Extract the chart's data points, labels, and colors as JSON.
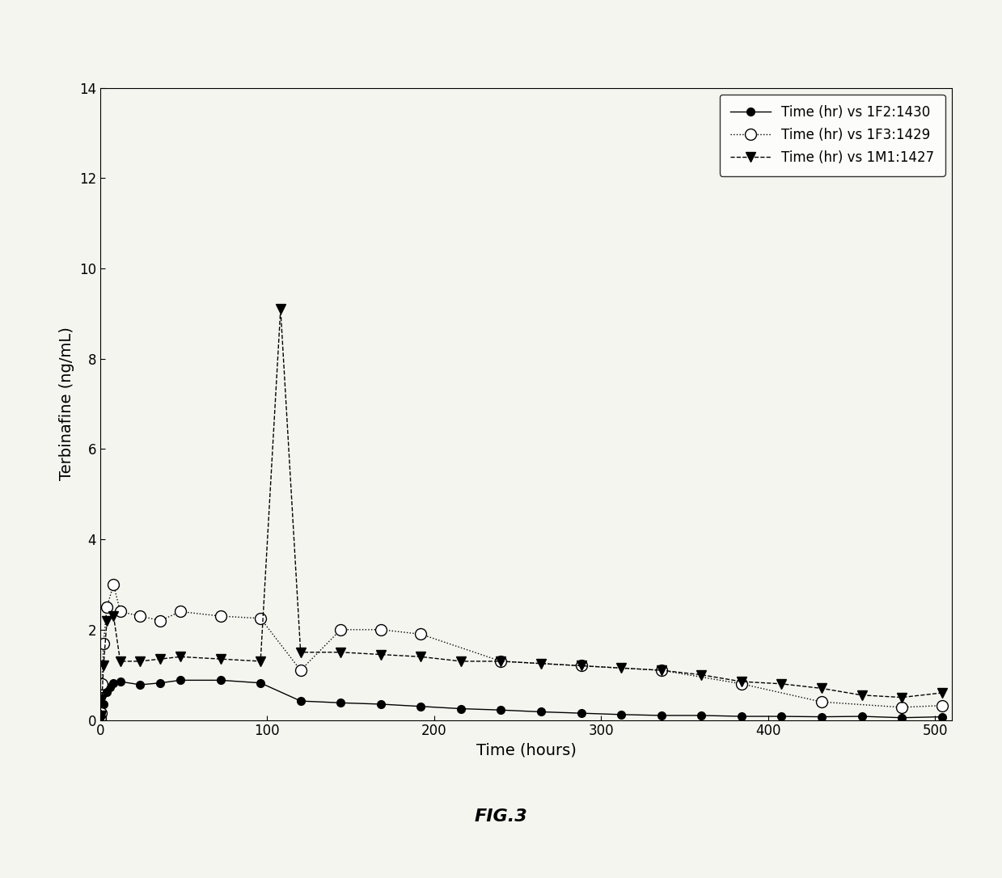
{
  "series": [
    {
      "label": "Time (hr) vs 1F2:1430",
      "x": [
        0,
        0.25,
        0.5,
        1,
        2,
        4,
        6,
        8,
        12,
        24,
        36,
        48,
        72,
        96,
        120,
        144,
        168,
        192,
        216,
        240,
        264,
        288,
        312,
        336,
        360,
        384,
        408,
        432,
        456,
        480,
        504
      ],
      "y": [
        0,
        0.02,
        0.05,
        0.15,
        0.35,
        0.62,
        0.72,
        0.82,
        0.85,
        0.78,
        0.82,
        0.88,
        0.88,
        0.82,
        0.42,
        0.38,
        0.35,
        0.3,
        0.25,
        0.22,
        0.18,
        0.15,
        0.12,
        0.1,
        0.1,
        0.08,
        0.08,
        0.07,
        0.08,
        0.05,
        0.07
      ],
      "marker": "o",
      "markerfacecolor": "black",
      "markeredgecolor": "black",
      "linestyle": "-",
      "color": "black",
      "markersize": 7
    },
    {
      "label": "Time (hr) vs 1F3:1429",
      "x": [
        0,
        0.25,
        0.5,
        1,
        2,
        4,
        8,
        12,
        24,
        36,
        48,
        72,
        96,
        120,
        144,
        168,
        192,
        240,
        288,
        336,
        384,
        432,
        480,
        504
      ],
      "y": [
        0,
        0.05,
        0.15,
        0.8,
        1.7,
        2.5,
        3.0,
        2.4,
        2.3,
        2.2,
        2.4,
        2.3,
        2.25,
        1.1,
        2.0,
        2.0,
        1.9,
        1.3,
        1.2,
        1.1,
        0.8,
        0.4,
        0.28,
        0.32
      ],
      "marker": "o",
      "markerfacecolor": "white",
      "markeredgecolor": "black",
      "linestyle": ":",
      "color": "black",
      "markersize": 10
    },
    {
      "label": "Time (hr) vs 1M1:1427",
      "x": [
        0,
        0.25,
        0.5,
        1,
        2,
        4,
        8,
        12,
        24,
        36,
        48,
        72,
        96,
        108,
        120,
        144,
        168,
        192,
        216,
        240,
        264,
        288,
        312,
        336,
        360,
        384,
        408,
        432,
        456,
        480,
        504
      ],
      "y": [
        0,
        0.05,
        0.1,
        0.45,
        1.2,
        2.2,
        2.3,
        1.3,
        1.3,
        1.35,
        1.4,
        1.35,
        1.3,
        9.1,
        1.5,
        1.5,
        1.45,
        1.4,
        1.3,
        1.3,
        1.25,
        1.2,
        1.15,
        1.1,
        1.0,
        0.85,
        0.8,
        0.7,
        0.55,
        0.5,
        0.6
      ],
      "marker": "v",
      "markerfacecolor": "black",
      "markeredgecolor": "black",
      "linestyle": "--",
      "color": "black",
      "markersize": 9
    }
  ],
  "xlabel": "Time (hours)",
  "ylabel": "Terbinafine (ng/mL)",
  "xlim": [
    0,
    510
  ],
  "ylim": [
    0,
    14
  ],
  "yticks": [
    0,
    2,
    4,
    6,
    8,
    10,
    12,
    14
  ],
  "xticks": [
    0,
    100,
    200,
    300,
    400,
    500
  ],
  "legend_loc": "upper right",
  "fig_label": "FIG.3",
  "background_color": "#f5f5f0"
}
